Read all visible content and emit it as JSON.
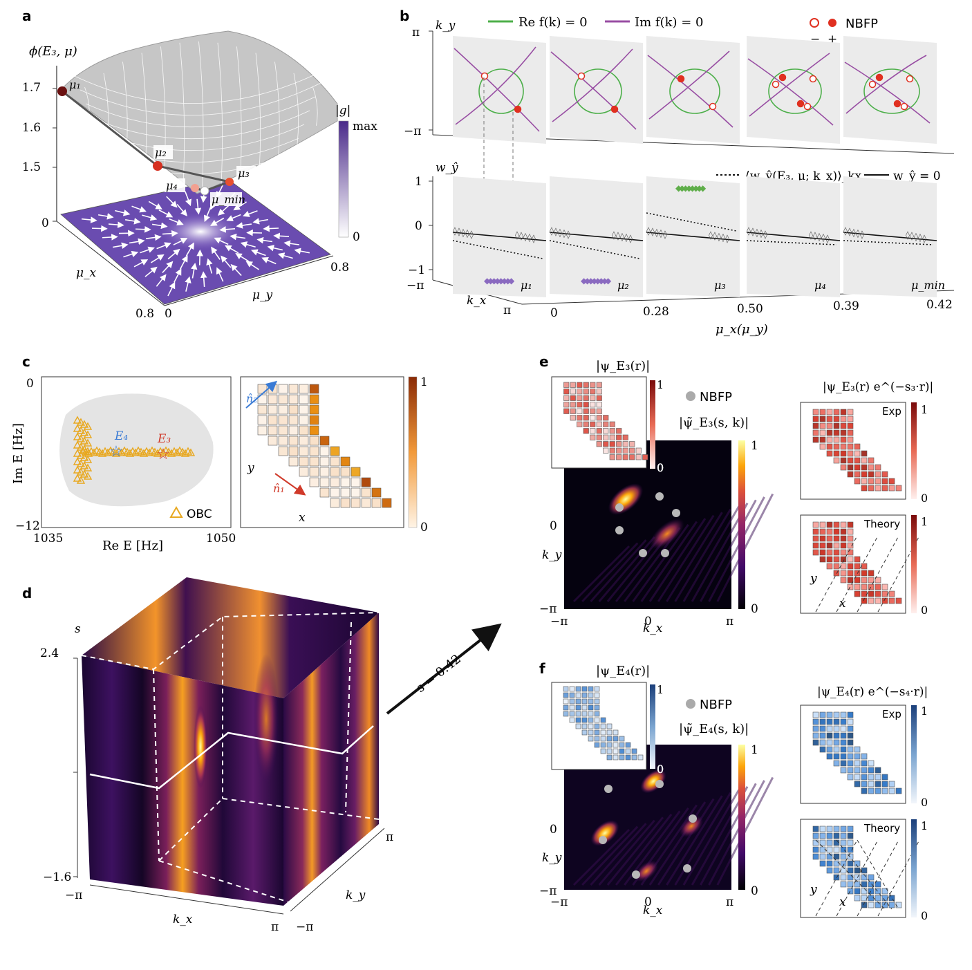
{
  "panels": {
    "a": {
      "label": "a",
      "y_title": "ϕ(E₃, μ)",
      "z_ticks": [
        "1.7",
        "1.6",
        "1.5",
        "0"
      ],
      "points": [
        "μ₁",
        "μ₂",
        "μ₃",
        "μ₄",
        "μ_min"
      ],
      "axis_mux": "μ_x",
      "axis_muy": "μ_y",
      "mux_ticks": [
        "0.8",
        "0"
      ],
      "muy_ticks": [
        "0.8"
      ],
      "colorbar_title": "|g|",
      "colorbar_max": "max",
      "colorbar_min": "0",
      "colors": {
        "surface": "#c8c8c8",
        "purple": "#5a3d9a",
        "path": "#555555"
      }
    },
    "b": {
      "label": "b",
      "legend_re": "Re f(k) = 0",
      "legend_im": "Im f(k) = 0",
      "legend_nbfp": "NBFP",
      "legend_minus": "−",
      "legend_plus": "+",
      "ky_label": "k_y",
      "ky_ticks": [
        "π",
        "−π"
      ],
      "w_label": "w_ŷ",
      "w_ticks": [
        "1",
        "0",
        "−1"
      ],
      "kx_label": "k_x",
      "kx_ticks": [
        "−π",
        "π"
      ],
      "legend_avg": "⟨w_ŷ(E₃, μ; k_x)⟩_kx",
      "legend_zero": "w_ŷ = 0",
      "slice_labels": [
        "μ₁",
        "μ₂",
        "μ₃",
        "μ₄",
        "μ_min"
      ],
      "mu_ticks": [
        "0",
        "0.28",
        "0.50",
        "0.39",
        "0.42"
      ],
      "mu_axis_label": "μ_x(μ_y)",
      "colors": {
        "re": "#4daf4a",
        "im": "#984ea3",
        "nbfp": "#e03020"
      }
    },
    "c": {
      "label": "c",
      "y_axis_label": "Im E [Hz]",
      "x_axis_label": "Re E [Hz]",
      "y_ticks": [
        "0",
        "−12"
      ],
      "x_ticks": [
        "1035",
        "1050"
      ],
      "e4_label": "E₄",
      "e3_label": "E₃",
      "legend_obc": "OBC",
      "lattice_n2": "n̂₂",
      "lattice_n1": "n̂₁",
      "lattice_y": "y",
      "lattice_x": "x",
      "colorbar_max": "1",
      "colorbar_min": "0",
      "colors": {
        "obc": "#e8a820",
        "e4": "#3a7bd5",
        "e3": "#d03a2a",
        "gray": "#e6e6e6"
      }
    },
    "d": {
      "label": "d",
      "s_label": "s",
      "s_ticks": [
        "2.4",
        "−1.6"
      ],
      "kx_label": "k_x",
      "kx_ticks": [
        "−π",
        "π"
      ],
      "ky_label": "k_y",
      "ky_ticks": [
        "π",
        "−π"
      ],
      "arrow_label": "s = 0.42"
    },
    "e": {
      "label": "e",
      "inset_title": "|ψ_E₃(r)|",
      "inset_max": "1",
      "inset_min": "0",
      "nbfp": "NBFP",
      "map_title": "|ψ̃_E₃(s, k)|",
      "map_max": "1",
      "map_min": "0",
      "ky_label": "k_y",
      "ky_ticks": [
        "0",
        "−π"
      ],
      "kx_label": "k_x",
      "kx_ticks": [
        "−π",
        "0",
        "π"
      ],
      "right_title": "|ψ_E₃(r) e^(−s₃·r)|",
      "exp_label": "Exp",
      "theory_label": "Theory",
      "right_y": "y",
      "right_x": "x",
      "cb_max": "1",
      "cb_min": "0"
    },
    "f": {
      "label": "f",
      "inset_title": "|ψ_E₄(r)|",
      "inset_max": "1",
      "inset_min": "0",
      "nbfp": "NBFP",
      "map_title": "|ψ̃_E₄(s, k)|",
      "map_max": "1",
      "map_min": "0",
      "ky_label": "k_y",
      "ky_ticks": [
        "0",
        "−π"
      ],
      "kx_label": "k_x",
      "kx_ticks": [
        "−π",
        "0",
        "π"
      ],
      "right_title": "|ψ_E₄(r) e^(−s₄·r)|",
      "exp_label": "Exp",
      "theory_label": "Theory",
      "right_y": "y",
      "right_x": "x",
      "cb_max": "1",
      "cb_min": "0"
    }
  }
}
